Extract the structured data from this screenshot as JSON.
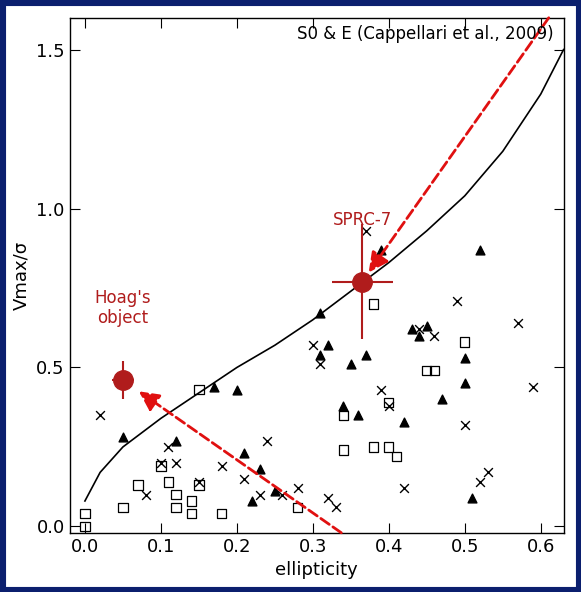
{
  "chart_data": {
    "type": "scatter",
    "title": "S0 & E (Cappellari et al., 2009)",
    "x_label": "ellipticity",
    "y_label": "Vmax/σ",
    "xlim": [
      -0.02,
      0.63
    ],
    "xticks": [
      {
        "value": 0,
        "label": "0.0"
      },
      0.1,
      0.2,
      0.3,
      0.4,
      0.5,
      0.6
    ],
    "ylim": [
      -0.02,
      1.6
    ],
    "yticks": [
      {
        "value": 0,
        "label": "0.0"
      },
      0.5,
      {
        "value": 1,
        "label": "1.0"
      },
      1.5
    ],
    "grid": false,
    "series": [
      {
        "type": "line",
        "color": "#000000",
        "line_style": "solid",
        "x": [
          0.0,
          0.02,
          0.05,
          0.1,
          0.15,
          0.2,
          0.25,
          0.3,
          0.35,
          0.4,
          0.45,
          0.5,
          0.55,
          0.6,
          0.63
        ],
        "values": [
          0.08,
          0.17,
          0.25,
          0.34,
          0.42,
          0.5,
          0.57,
          0.65,
          0.74,
          0.83,
          0.93,
          1.04,
          1.18,
          1.36,
          1.5
        ]
      },
      {
        "type": "scatter",
        "color": "#000000",
        "marker": "triangle",
        "x": [
          0.05,
          0.12,
          0.17,
          0.2,
          0.21,
          0.22,
          0.23,
          0.25,
          0.31,
          0.31,
          0.32,
          0.34,
          0.35,
          0.36,
          0.37,
          0.39,
          0.42,
          0.43,
          0.44,
          0.45,
          0.47,
          0.5,
          0.5,
          0.51,
          0.52
        ],
        "values": [
          0.28,
          0.27,
          0.44,
          0.43,
          0.23,
          0.08,
          0.18,
          0.11,
          0.67,
          0.54,
          0.57,
          0.38,
          0.51,
          0.35,
          0.54,
          0.87,
          0.33,
          0.62,
          0.6,
          0.63,
          0.4,
          0.53,
          0.45,
          0.09,
          0.87
        ]
      },
      {
        "type": "scatter",
        "color": "#000000",
        "marker": "cross",
        "x": [
          0.02,
          0.08,
          0.1,
          0.11,
          0.12,
          0.15,
          0.18,
          0.21,
          0.23,
          0.24,
          0.26,
          0.28,
          0.3,
          0.31,
          0.32,
          0.33,
          0.37,
          0.39,
          0.4,
          0.42,
          0.44,
          0.46,
          0.49,
          0.5,
          0.52,
          0.53,
          0.57,
          0.59
        ],
        "values": [
          0.35,
          0.1,
          0.2,
          0.25,
          0.2,
          0.14,
          0.19,
          0.15,
          0.1,
          0.27,
          0.1,
          0.12,
          0.57,
          0.51,
          0.09,
          0.06,
          0.93,
          0.43,
          0.38,
          0.12,
          0.62,
          0.6,
          0.71,
          0.32,
          0.14,
          0.17,
          0.64,
          0.44
        ]
      },
      {
        "type": "scatter",
        "color": "#000000",
        "marker": "square",
        "x": [
          0.0,
          0.0,
          0.05,
          0.07,
          0.1,
          0.11,
          0.12,
          0.12,
          0.14,
          0.14,
          0.15,
          0.15,
          0.18,
          0.28,
          0.34,
          0.34,
          0.38,
          0.38,
          0.4,
          0.41,
          0.4,
          0.45,
          0.46,
          0.5
        ],
        "values": [
          0.04,
          0.0,
          0.06,
          0.13,
          0.19,
          0.14,
          0.06,
          0.1,
          0.04,
          0.08,
          0.13,
          0.43,
          0.04,
          0.06,
          0.24,
          0.35,
          0.7,
          0.25,
          0.25,
          0.22,
          0.39,
          0.49,
          0.49,
          0.58
        ]
      },
      {
        "type": "scatter",
        "color": "#b01c1c",
        "marker": "circle",
        "x": [
          0.365,
          0.05
        ],
        "values": [
          0.77,
          0.46
        ],
        "xerr": [
          0.04,
          0.015
        ],
        "yerr": [
          0.18,
          0.06
        ],
        "labels": [
          "SPRC-7",
          "Hoag's\nobject"
        ]
      }
    ]
  }
}
